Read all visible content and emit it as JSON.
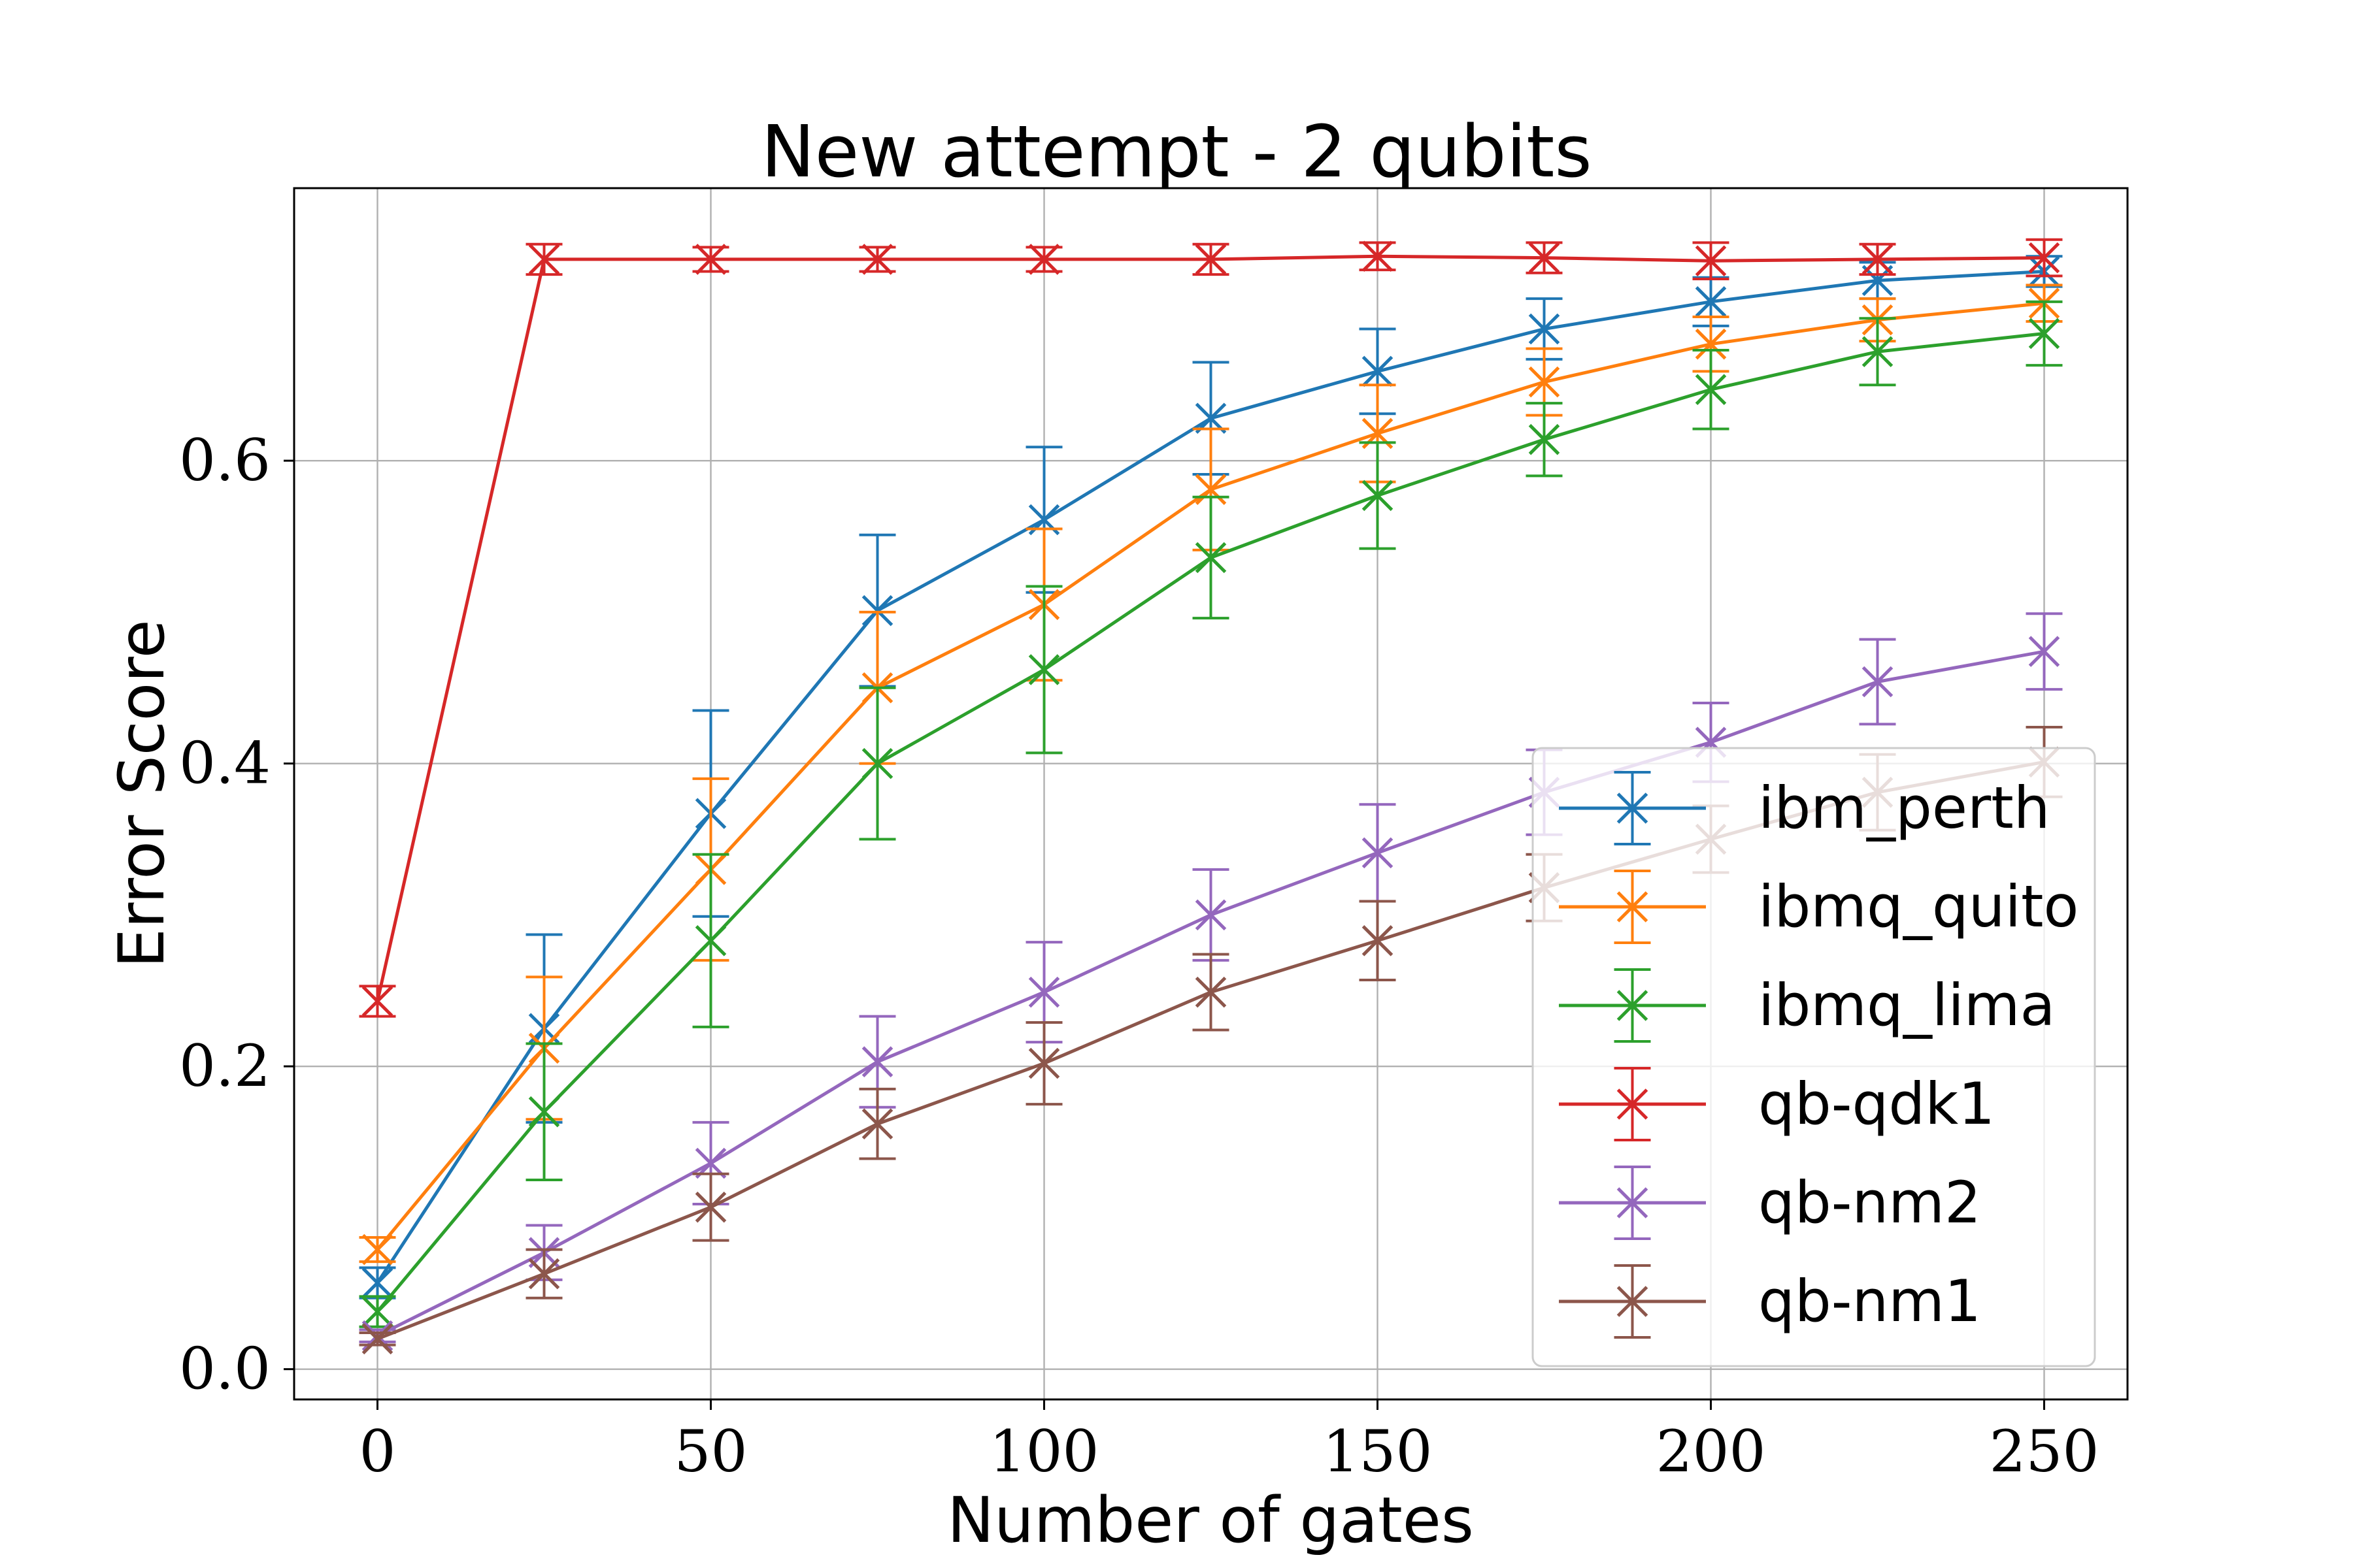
{
  "chart_data": {
    "type": "line",
    "title": "New attempt - 2 qubits",
    "xlabel": "Number of gates",
    "ylabel": "Error Score",
    "xlim": [
      -12.5,
      262.5
    ],
    "ylim": [
      -0.02,
      0.78
    ],
    "xticks": [
      0,
      50,
      100,
      150,
      200,
      250
    ],
    "xtick_labels": [
      "0",
      "50",
      "100",
      "150",
      "200",
      "250"
    ],
    "yticks": [
      0.0,
      0.2,
      0.4,
      0.6
    ],
    "ytick_labels": [
      "0.0",
      "0.2",
      "0.4",
      "0.6"
    ],
    "grid": true,
    "legend_position": "lower right",
    "marker": "x",
    "error_bars": true,
    "x": [
      0,
      25,
      50,
      75,
      100,
      125,
      150,
      175,
      200,
      225,
      250
    ],
    "series": [
      {
        "name": "ibm_perth",
        "color": "#1f77b4",
        "values": [
          0.057,
          0.225,
          0.367,
          0.501,
          0.561,
          0.628,
          0.659,
          0.687,
          0.705,
          0.719,
          0.725
        ],
        "errors": [
          0.01,
          0.062,
          0.068,
          0.05,
          0.048,
          0.037,
          0.028,
          0.02,
          0.016,
          0.012,
          0.01
        ]
      },
      {
        "name": "ibmq_quito",
        "color": "#ff7f0e",
        "values": [
          0.079,
          0.212,
          0.33,
          0.45,
          0.505,
          0.581,
          0.618,
          0.652,
          0.677,
          0.693,
          0.704
        ],
        "errors": [
          0.008,
          0.047,
          0.06,
          0.05,
          0.05,
          0.04,
          0.032,
          0.022,
          0.018,
          0.014,
          0.012
        ]
      },
      {
        "name": "ibmq_lima",
        "color": "#2ca02c",
        "values": [
          0.038,
          0.17,
          0.283,
          0.4,
          0.462,
          0.536,
          0.577,
          0.614,
          0.647,
          0.672,
          0.684
        ],
        "errors": [
          0.01,
          0.045,
          0.057,
          0.05,
          0.055,
          0.04,
          0.035,
          0.024,
          0.026,
          0.022,
          0.021
        ]
      },
      {
        "name": "qb-qdk1",
        "color": "#d62728",
        "values": [
          0.243,
          0.733,
          0.733,
          0.733,
          0.733,
          0.733,
          0.735,
          0.734,
          0.732,
          0.733,
          0.734
        ],
        "errors": [
          0.01,
          0.01,
          0.008,
          0.008,
          0.008,
          0.01,
          0.009,
          0.01,
          0.012,
          0.01,
          0.012
        ]
      },
      {
        "name": "qb-nm2",
        "color": "#9467bd",
        "values": [
          0.022,
          0.077,
          0.136,
          0.203,
          0.249,
          0.3,
          0.341,
          0.381,
          0.414,
          0.454,
          0.474
        ],
        "errors": [
          0.004,
          0.018,
          0.027,
          0.03,
          0.033,
          0.03,
          0.032,
          0.028,
          0.026,
          0.028,
          0.025
        ]
      },
      {
        "name": "qb-nm1",
        "color": "#8c564b",
        "values": [
          0.02,
          0.063,
          0.107,
          0.162,
          0.202,
          0.249,
          0.283,
          0.318,
          0.35,
          0.381,
          0.401
        ],
        "errors": [
          0.004,
          0.016,
          0.022,
          0.023,
          0.027,
          0.025,
          0.026,
          0.022,
          0.022,
          0.025,
          0.023
        ]
      }
    ]
  }
}
